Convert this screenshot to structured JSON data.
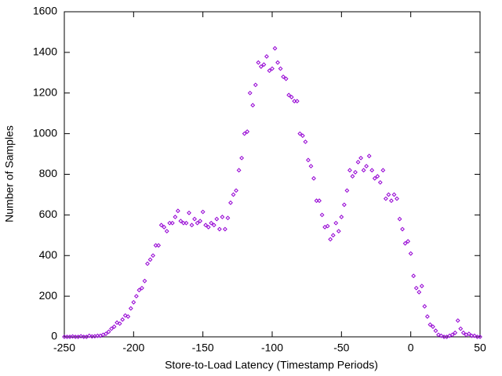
{
  "chart_data": {
    "type": "scatter",
    "xlabel": "Store-to-Load Latency (Timestamp Periods)",
    "ylabel": "Number of Samples",
    "color": "#9400d3",
    "xlim": [
      -250,
      50
    ],
    "xticks": [
      -250,
      -200,
      -150,
      -100,
      -50,
      0,
      50
    ],
    "ylim": [
      0,
      1600
    ],
    "yticks": [
      0,
      200,
      400,
      600,
      800,
      1000,
      1200,
      1400,
      1600
    ],
    "x": [
      -250,
      -248,
      -246,
      -244,
      -242,
      -240,
      -238,
      -236,
      -234,
      -232,
      -230,
      -228,
      -226,
      -224,
      -222,
      -220,
      -218,
      -216,
      -214,
      -212,
      -210,
      -208,
      -206,
      -204,
      -202,
      -200,
      -198,
      -196,
      -194,
      -192,
      -190,
      -188,
      -186,
      -184,
      -182,
      -180,
      -178,
      -176,
      -174,
      -172,
      -170,
      -168,
      -166,
      -164,
      -162,
      -160,
      -158,
      -156,
      -154,
      -152,
      -150,
      -148,
      -146,
      -144,
      -142,
      -140,
      -138,
      -136,
      -134,
      -132,
      -130,
      -128,
      -126,
      -124,
      -122,
      -120,
      -118,
      -116,
      -114,
      -112,
      -110,
      -108,
      -106,
      -104,
      -102,
      -100,
      -98,
      -96,
      -94,
      -92,
      -90,
      -88,
      -86,
      -84,
      -82,
      -80,
      -78,
      -76,
      -74,
      -72,
      -70,
      -68,
      -66,
      -64,
      -62,
      -60,
      -58,
      -56,
      -54,
      -52,
      -50,
      -48,
      -46,
      -44,
      -42,
      -40,
      -38,
      -36,
      -34,
      -32,
      -30,
      -28,
      -26,
      -24,
      -22,
      -20,
      -18,
      -16,
      -14,
      -12,
      -10,
      -8,
      -6,
      -4,
      -2,
      0,
      2,
      4,
      6,
      8,
      10,
      12,
      14,
      16,
      18,
      20,
      22,
      24,
      26,
      28,
      30,
      32,
      34,
      36,
      38,
      40,
      42,
      44,
      46,
      48,
      50
    ],
    "values": [
      0,
      0,
      0,
      2,
      0,
      0,
      3,
      0,
      0,
      5,
      2,
      3,
      5,
      5,
      10,
      15,
      25,
      40,
      50,
      70,
      65,
      85,
      105,
      100,
      140,
      170,
      200,
      230,
      240,
      275,
      360,
      380,
      400,
      450,
      450,
      550,
      540,
      520,
      560,
      560,
      590,
      620,
      570,
      560,
      560,
      610,
      550,
      580,
      560,
      570,
      615,
      550,
      540,
      560,
      550,
      580,
      530,
      590,
      530,
      585,
      660,
      700,
      720,
      820,
      880,
      1000,
      1010,
      1200,
      1140,
      1240,
      1350,
      1330,
      1340,
      1380,
      1310,
      1320,
      1420,
      1350,
      1320,
      1280,
      1270,
      1190,
      1180,
      1160,
      1160,
      1000,
      990,
      960,
      870,
      840,
      780,
      670,
      670,
      600,
      540,
      545,
      480,
      500,
      560,
      520,
      590,
      650,
      720,
      820,
      790,
      810,
      860,
      880,
      820,
      840,
      890,
      820,
      780,
      790,
      760,
      820,
      680,
      700,
      670,
      700,
      680,
      580,
      530,
      460,
      470,
      410,
      300,
      240,
      220,
      250,
      150,
      100,
      60,
      50,
      30,
      10,
      5,
      0,
      0,
      5,
      10,
      20,
      80,
      40,
      20,
      10,
      15,
      5,
      5,
      0,
      0
    ]
  }
}
